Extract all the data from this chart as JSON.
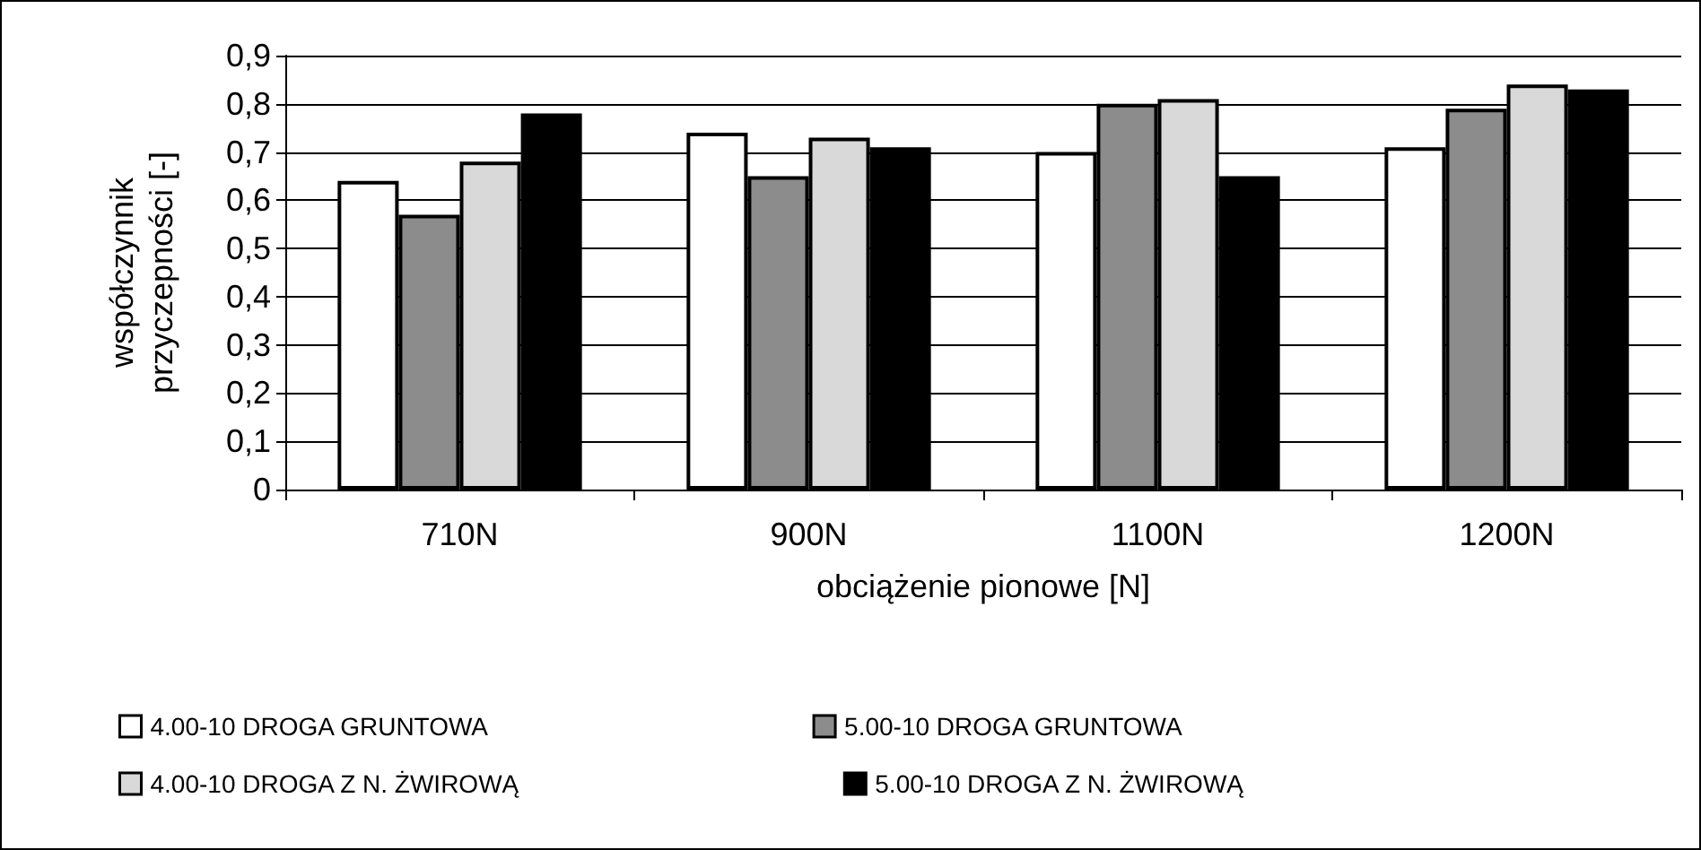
{
  "chart_data": {
    "type": "bar",
    "xlabel": "obciążenie pionowe [N]",
    "ylabel": "współczynnik\nprzyczepności [-]",
    "categories": [
      "710N",
      "900N",
      "1100N",
      "1200N"
    ],
    "series": [
      {
        "name": "4.00-10 DROGA GRUNTOWA",
        "color": "#ffffff",
        "values": [
          0.64,
          0.74,
          0.7,
          0.71
        ]
      },
      {
        "name": "5.00-10 DROGA GRUNTOWA",
        "color": "#8c8c8c",
        "values": [
          0.57,
          0.65,
          0.8,
          0.79
        ]
      },
      {
        "name": "4.00-10 DROGA Z N. ŻWIROWĄ",
        "color": "#d9d9d9",
        "values": [
          0.68,
          0.73,
          0.81,
          0.84
        ]
      },
      {
        "name": "5.00-10 DROGA Z N. ŻWIROWĄ",
        "color": "#000000",
        "values": [
          0.78,
          0.71,
          0.65,
          0.83
        ]
      }
    ],
    "ylim": [
      0,
      0.9
    ],
    "yticks": [
      {
        "value": 0,
        "label": "0"
      },
      {
        "value": 0.1,
        "label": "0,1"
      },
      {
        "value": 0.2,
        "label": "0,2"
      },
      {
        "value": 0.3,
        "label": "0,3"
      },
      {
        "value": 0.4,
        "label": "0,4"
      },
      {
        "value": 0.5,
        "label": "0,5"
      },
      {
        "value": 0.6,
        "label": "0,6"
      },
      {
        "value": 0.7,
        "label": "0,7"
      },
      {
        "value": 0.8,
        "label": "0,8"
      },
      {
        "value": 0.9,
        "label": "0,9"
      }
    ],
    "grid": "y",
    "legend": "bottom"
  }
}
